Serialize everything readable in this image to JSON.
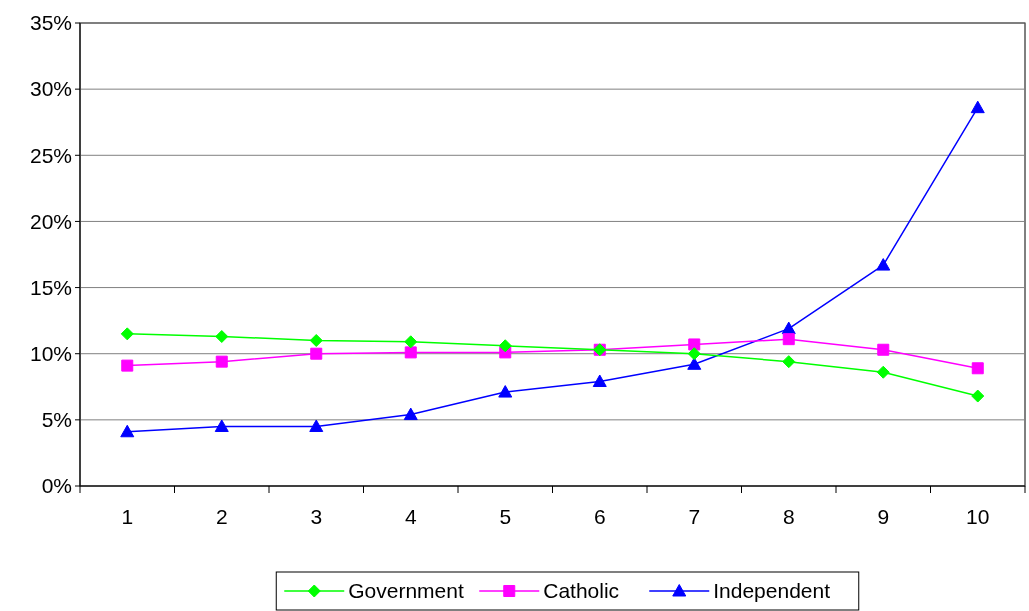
{
  "chart_data": {
    "type": "line",
    "categories": [
      "1",
      "2",
      "3",
      "4",
      "5",
      "6",
      "7",
      "8",
      "9",
      "10"
    ],
    "series": [
      {
        "name": "Government",
        "color": "#00ff00",
        "marker": "diamond",
        "values": [
          11.5,
          11.3,
          11.0,
          10.9,
          10.6,
          10.3,
          10.0,
          9.4,
          8.6,
          6.8
        ]
      },
      {
        "name": "Catholic",
        "color": "#ff00ff",
        "marker": "square",
        "values": [
          9.1,
          9.4,
          10.0,
          10.1,
          10.1,
          10.3,
          10.7,
          11.1,
          10.3,
          8.9
        ]
      },
      {
        "name": "Independent",
        "color": "#0000ff",
        "marker": "triangle",
        "values": [
          4.1,
          4.5,
          4.5,
          5.4,
          7.1,
          7.9,
          9.2,
          11.9,
          16.7,
          28.6
        ]
      }
    ],
    "ylim": [
      0,
      35
    ],
    "yticks": [
      {
        "value": 0,
        "label": "0%"
      },
      {
        "value": 5,
        "label": "5%"
      },
      {
        "value": 10,
        "label": "10%"
      },
      {
        "value": 15,
        "label": "15%"
      },
      {
        "value": 20,
        "label": "20%"
      },
      {
        "value": 25,
        "label": "25%"
      },
      {
        "value": 30,
        "label": "30%"
      },
      {
        "value": 35,
        "label": "35%"
      }
    ],
    "grid": "y",
    "legend": "bottom",
    "line_style": "solid"
  }
}
